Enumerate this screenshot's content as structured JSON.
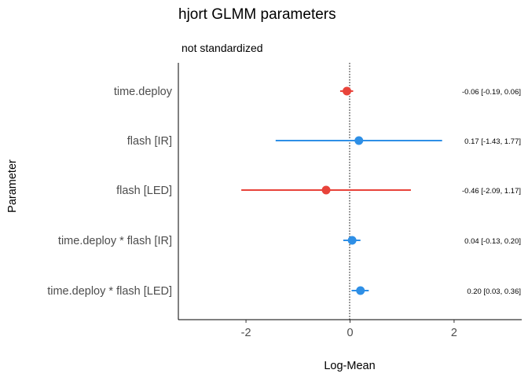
{
  "chart_data": {
    "type": "forest",
    "title": "hjort GLMM parameters",
    "subtitle": "not standardized",
    "xlabel": "Log-Mean",
    "ylabel": "Parameter",
    "xlim": [
      -3.3,
      3.3
    ],
    "xticks": [
      -2,
      0,
      2
    ],
    "reference_line": 0,
    "grid": false,
    "colors": {
      "negative": "#e8433a",
      "positive": "#2e8fe6"
    },
    "parameters": [
      {
        "label": "time.deploy",
        "estimate": -0.06,
        "ci_low": -0.19,
        "ci_high": 0.06,
        "value_label": "-0.06 [-0.19, 0.06]"
      },
      {
        "label": "flash [IR]",
        "estimate": 0.17,
        "ci_low": -1.43,
        "ci_high": 1.77,
        "value_label": "0.17 [-1.43, 1.77]"
      },
      {
        "label": "flash [LED]",
        "estimate": -0.46,
        "ci_low": -2.09,
        "ci_high": 1.17,
        "value_label": "-0.46 [-2.09, 1.17]"
      },
      {
        "label": "time.deploy * flash [IR]",
        "estimate": 0.04,
        "ci_low": -0.13,
        "ci_high": 0.2,
        "value_label": "0.04 [-0.13, 0.20]"
      },
      {
        "label": "time.deploy * flash [LED]",
        "estimate": 0.2,
        "ci_low": 0.03,
        "ci_high": 0.36,
        "value_label": "0.20 [0.03, 0.36]"
      }
    ]
  }
}
